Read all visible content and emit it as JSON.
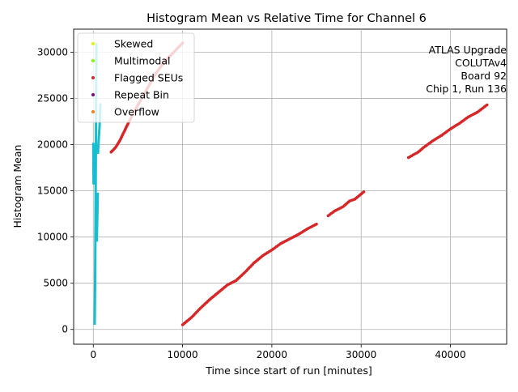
{
  "chart_data": {
    "type": "scatter",
    "title": "Histogram Mean vs Relative Time for Channel 6",
    "xlabel": "Time since start of run [minutes]",
    "ylabel": "Histogram Mean",
    "xlim": [
      -2200,
      46300
    ],
    "ylim": [
      -1600,
      32500
    ],
    "x_ticks": [
      0,
      10000,
      20000,
      30000,
      40000
    ],
    "x_tick_labels": [
      "0",
      "10000",
      "20000",
      "30000",
      "40000"
    ],
    "y_ticks": [
      0,
      5000,
      10000,
      15000,
      20000,
      25000,
      30000
    ],
    "y_tick_labels": [
      "0",
      "5000",
      "10000",
      "15000",
      "20000",
      "25000",
      "30000"
    ],
    "grid": true,
    "legend_position": "top-left",
    "legend": [
      {
        "label": "Skewed",
        "color": "#e5f700"
      },
      {
        "label": "Multimodal",
        "color": "#7fff00"
      },
      {
        "label": "Flagged SEUs",
        "color": "#d62728"
      },
      {
        "label": "Repeat Bin",
        "color": "#7b0080"
      },
      {
        "label": "Overflow",
        "color": "#ff7f0e"
      }
    ],
    "annotation": [
      "ATLAS Upgrade",
      "COLUTAv4",
      "Board 92",
      "Chip 1, Run 136"
    ],
    "series": [
      {
        "name": "",
        "color": "#17becf",
        "style": "line",
        "segments": [
          [
            [
              0,
              20200
            ],
            [
              30,
              15800
            ],
            [
              60,
              19500
            ],
            [
              100,
              16000
            ],
            [
              140,
              20000
            ]
          ],
          [
            [
              160,
              500
            ],
            [
              200,
              5000
            ],
            [
              230,
              9000
            ],
            [
              260,
              14000
            ],
            [
              290,
              20000
            ],
            [
              320,
              25000
            ],
            [
              350,
              31000
            ]
          ],
          [
            [
              380,
              9500
            ],
            [
              420,
              11000
            ],
            [
              460,
              12500
            ],
            [
              500,
              14800
            ]
          ],
          [
            [
              520,
              19000
            ],
            [
              600,
              20500
            ],
            [
              700,
              22000
            ],
            [
              800,
              24500
            ]
          ]
        ]
      },
      {
        "name": "Flagged SEUs",
        "color": "#d62728",
        "style": "points",
        "segments": [
          [
            [
              2000,
              19200
            ],
            [
              2500,
              19700
            ],
            [
              3000,
              20500
            ],
            [
              3500,
              21500
            ],
            [
              4000,
              22500
            ],
            [
              5000,
              24300
            ],
            [
              6000,
              26000
            ],
            [
              7000,
              27700
            ],
            [
              8000,
              29000
            ],
            [
              9000,
              30000
            ],
            [
              10000,
              31000
            ]
          ],
          [
            [
              10000,
              500
            ],
            [
              11000,
              1300
            ],
            [
              12000,
              2300
            ],
            [
              13000,
              3200
            ],
            [
              14000,
              4000
            ],
            [
              15000,
              4800
            ],
            [
              16000,
              5300
            ],
            [
              17000,
              6200
            ],
            [
              18000,
              7200
            ],
            [
              19000,
              8000
            ],
            [
              20000,
              8600
            ],
            [
              21000,
              9300
            ],
            [
              22000,
              9800
            ],
            [
              23000,
              10300
            ],
            [
              24000,
              10900
            ],
            [
              25000,
              11400
            ]
          ],
          [
            [
              26300,
              12300
            ],
            [
              27000,
              12800
            ],
            [
              28000,
              13300
            ],
            [
              28700,
              13900
            ],
            [
              29300,
              14100
            ],
            [
              30300,
              14900
            ]
          ],
          [
            [
              35300,
              18600
            ],
            [
              36400,
              19200
            ],
            [
              37000,
              19700
            ],
            [
              38000,
              20400
            ],
            [
              39000,
              21000
            ],
            [
              40000,
              21700
            ],
            [
              41000,
              22300
            ],
            [
              42000,
              23000
            ],
            [
              43000,
              23500
            ],
            [
              44100,
              24300
            ]
          ]
        ]
      }
    ]
  }
}
